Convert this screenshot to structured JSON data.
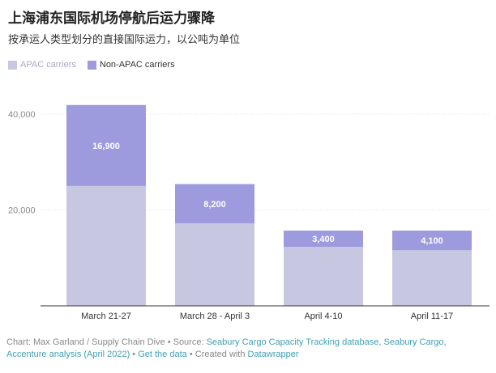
{
  "title": "上海浦东国际机场停航后运力骤降",
  "subtitle": "按承运人类型划分的直接国际运力，以公吨为单位",
  "colors": {
    "apac": "#c7c7e1",
    "non_apac": "#9e9ade",
    "axis": "#333333",
    "grid": "#e0e0e0",
    "link": "#3f9fb2"
  },
  "chart_data": {
    "type": "bar",
    "stacked": true,
    "categories": [
      "March 21-27",
      "March 28 - April 3",
      "April 4-10",
      "April 11-17"
    ],
    "series": [
      {
        "name": "APAC carriers",
        "values": [
          25000,
          17200,
          12300,
          11600
        ]
      },
      {
        "name": "Non-APAC carriers",
        "values": [
          16900,
          8200,
          3400,
          4100
        ]
      }
    ],
    "data_labels": [
      "16,900",
      "8,200",
      "3,400",
      "4,100"
    ],
    "y_ticks": [
      20000,
      40000
    ],
    "y_tick_labels": [
      "20,000",
      "40,000"
    ],
    "ylim": [
      0,
      45000
    ],
    "legend_position": "top-left",
    "grid": true
  },
  "footer": {
    "chart_prefix": "Chart: Max Garland / Supply Chain Dive • Source: ",
    "source_link1": "Seabury Cargo Capacity Tracking database",
    "sep1": ", ",
    "source_link2": "Seabury Cargo,",
    "source_link3": "Accenture analysis (April 2022)",
    "sep2": " • ",
    "get_data": "Get the data",
    "created_prefix": " • Created with ",
    "datawrapper": "Datawrapper"
  }
}
